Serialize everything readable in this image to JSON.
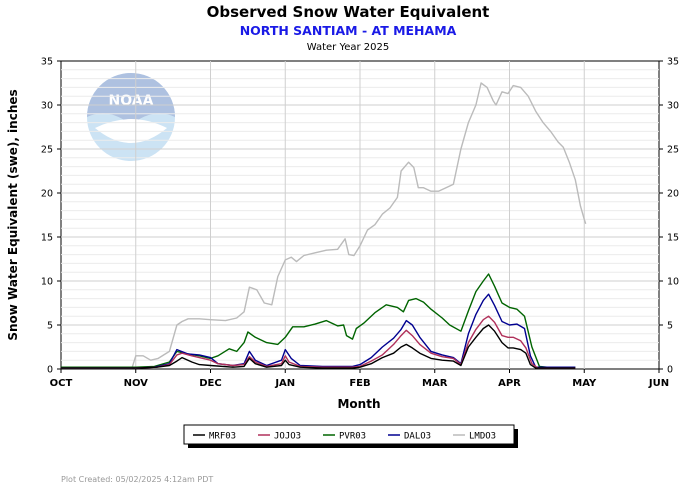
{
  "chart_data": {
    "type": "line",
    "title": "Observed Snow Water Equivalent",
    "subtitle": "NORTH SANTIAM - AT MEHAMA",
    "subtitle2": "Water Year 2025",
    "xlabel": "Month",
    "ylabel": "Snow Water Equivalent (swe),  inches",
    "xlim": [
      0,
      8
    ],
    "ylim": [
      0,
      35
    ],
    "x_ticks": [
      "OCT",
      "NOV",
      "DEC",
      "JAN",
      "FEB",
      "MAR",
      "APR",
      "MAY",
      "JUN"
    ],
    "y_ticks": [
      0,
      5,
      10,
      15,
      20,
      25,
      30,
      35
    ],
    "x_units": "months since Oct 1",
    "grid": true,
    "legend_position": "bottom",
    "footer": "Plot Created:  05/02/2025 4:12am PDT",
    "series": [
      {
        "name": "MRF03",
        "color": "#000000",
        "points": [
          [
            0,
            0.1
          ],
          [
            1,
            0.1
          ],
          [
            1.28,
            0.2
          ],
          [
            1.45,
            0.4
          ],
          [
            1.55,
            0.9
          ],
          [
            1.62,
            1.3
          ],
          [
            1.75,
            0.8
          ],
          [
            1.85,
            0.5
          ],
          [
            2.0,
            0.4
          ],
          [
            2.3,
            0.2
          ],
          [
            2.45,
            0.3
          ],
          [
            2.52,
            1.2
          ],
          [
            2.6,
            0.6
          ],
          [
            2.75,
            0.2
          ],
          [
            2.95,
            0.4
          ],
          [
            3.0,
            1.0
          ],
          [
            3.05,
            0.5
          ],
          [
            3.2,
            0.2
          ],
          [
            3.5,
            0.1
          ],
          [
            3.9,
            0.1
          ],
          [
            4.0,
            0.2
          ],
          [
            4.15,
            0.6
          ],
          [
            4.3,
            1.3
          ],
          [
            4.45,
            1.8
          ],
          [
            4.55,
            2.5
          ],
          [
            4.62,
            2.8
          ],
          [
            4.7,
            2.4
          ],
          [
            4.8,
            1.8
          ],
          [
            4.95,
            1.2
          ],
          [
            5.1,
            1.0
          ],
          [
            5.25,
            0.9
          ],
          [
            5.35,
            0.4
          ],
          [
            5.45,
            2.5
          ],
          [
            5.55,
            3.6
          ],
          [
            5.65,
            4.6
          ],
          [
            5.72,
            5.0
          ],
          [
            5.8,
            4.3
          ],
          [
            5.9,
            3.0
          ],
          [
            5.98,
            2.4
          ],
          [
            6.05,
            2.4
          ],
          [
            6.15,
            2.2
          ],
          [
            6.22,
            1.8
          ],
          [
            6.28,
            0.5
          ],
          [
            6.35,
            0.1
          ],
          [
            6.5,
            0.1
          ],
          [
            6.88,
            0.1
          ]
        ]
      },
      {
        "name": "JOJO3",
        "color": "#b0305a",
        "points": [
          [
            0,
            0.1
          ],
          [
            1,
            0.1
          ],
          [
            1.28,
            0.2
          ],
          [
            1.45,
            0.5
          ],
          [
            1.55,
            1.6
          ],
          [
            1.62,
            1.8
          ],
          [
            1.75,
            1.5
          ],
          [
            1.85,
            1.3
          ],
          [
            2.0,
            1.0
          ],
          [
            2.1,
            0.6
          ],
          [
            2.3,
            0.4
          ],
          [
            2.45,
            0.5
          ],
          [
            2.52,
            1.4
          ],
          [
            2.6,
            0.8
          ],
          [
            2.75,
            0.3
          ],
          [
            2.95,
            0.6
          ],
          [
            3.0,
            1.5
          ],
          [
            3.05,
            0.8
          ],
          [
            3.2,
            0.3
          ],
          [
            3.5,
            0.2
          ],
          [
            3.9,
            0.2
          ],
          [
            4.0,
            0.3
          ],
          [
            4.15,
            0.9
          ],
          [
            4.3,
            1.6
          ],
          [
            4.45,
            2.8
          ],
          [
            4.55,
            3.8
          ],
          [
            4.62,
            4.4
          ],
          [
            4.7,
            3.8
          ],
          [
            4.8,
            2.8
          ],
          [
            4.95,
            1.8
          ],
          [
            5.1,
            1.4
          ],
          [
            5.25,
            1.2
          ],
          [
            5.35,
            0.5
          ],
          [
            5.45,
            3.0
          ],
          [
            5.55,
            4.5
          ],
          [
            5.65,
            5.6
          ],
          [
            5.72,
            6.0
          ],
          [
            5.8,
            5.3
          ],
          [
            5.9,
            3.8
          ],
          [
            5.98,
            3.6
          ],
          [
            6.05,
            3.6
          ],
          [
            6.15,
            3.2
          ],
          [
            6.22,
            2.4
          ],
          [
            6.3,
            0.6
          ],
          [
            6.38,
            0.1
          ],
          [
            6.5,
            0.1
          ],
          [
            6.88,
            0.1
          ]
        ]
      },
      {
        "name": "PVR03",
        "color": "#006400",
        "points": [
          [
            0,
            0.2
          ],
          [
            1,
            0.2
          ],
          [
            1.25,
            0.3
          ],
          [
            1.45,
            0.8
          ],
          [
            1.55,
            2.0
          ],
          [
            1.7,
            1.7
          ],
          [
            1.85,
            1.5
          ],
          [
            2.0,
            1.2
          ],
          [
            2.1,
            1.5
          ],
          [
            2.25,
            2.3
          ],
          [
            2.35,
            2.0
          ],
          [
            2.45,
            3.0
          ],
          [
            2.5,
            4.2
          ],
          [
            2.6,
            3.6
          ],
          [
            2.75,
            3.0
          ],
          [
            2.9,
            2.8
          ],
          [
            3.0,
            3.6
          ],
          [
            3.1,
            4.8
          ],
          [
            3.25,
            4.8
          ],
          [
            3.4,
            5.1
          ],
          [
            3.55,
            5.5
          ],
          [
            3.7,
            4.9
          ],
          [
            3.78,
            5.0
          ],
          [
            3.82,
            3.8
          ],
          [
            3.9,
            3.4
          ],
          [
            3.95,
            4.6
          ],
          [
            4.05,
            5.2
          ],
          [
            4.2,
            6.4
          ],
          [
            4.35,
            7.3
          ],
          [
            4.5,
            7.0
          ],
          [
            4.58,
            6.5
          ],
          [
            4.65,
            7.8
          ],
          [
            4.75,
            8.0
          ],
          [
            4.85,
            7.6
          ],
          [
            4.95,
            6.8
          ],
          [
            5.1,
            5.8
          ],
          [
            5.2,
            5.0
          ],
          [
            5.35,
            4.3
          ],
          [
            5.45,
            6.6
          ],
          [
            5.55,
            8.8
          ],
          [
            5.65,
            10.0
          ],
          [
            5.72,
            10.8
          ],
          [
            5.8,
            9.4
          ],
          [
            5.9,
            7.5
          ],
          [
            6.0,
            7.0
          ],
          [
            6.1,
            6.8
          ],
          [
            6.2,
            6.0
          ],
          [
            6.3,
            2.5
          ],
          [
            6.4,
            0.3
          ],
          [
            6.5,
            0.2
          ],
          [
            6.88,
            0.2
          ]
        ]
      },
      {
        "name": "DALO3",
        "color": "#000090",
        "points": [
          [
            0,
            0.1
          ],
          [
            1,
            0.1
          ],
          [
            1.25,
            0.2
          ],
          [
            1.45,
            0.6
          ],
          [
            1.55,
            2.2
          ],
          [
            1.7,
            1.7
          ],
          [
            1.85,
            1.6
          ],
          [
            2.0,
            1.3
          ],
          [
            2.1,
            0.6
          ],
          [
            2.3,
            0.4
          ],
          [
            2.45,
            0.6
          ],
          [
            2.52,
            2.0
          ],
          [
            2.6,
            1.0
          ],
          [
            2.75,
            0.4
          ],
          [
            2.95,
            1.0
          ],
          [
            3.0,
            2.2
          ],
          [
            3.08,
            1.2
          ],
          [
            3.2,
            0.4
          ],
          [
            3.5,
            0.3
          ],
          [
            3.9,
            0.3
          ],
          [
            4.0,
            0.5
          ],
          [
            4.15,
            1.3
          ],
          [
            4.3,
            2.5
          ],
          [
            4.45,
            3.5
          ],
          [
            4.55,
            4.5
          ],
          [
            4.62,
            5.5
          ],
          [
            4.7,
            5.0
          ],
          [
            4.8,
            3.6
          ],
          [
            4.95,
            2.0
          ],
          [
            5.1,
            1.6
          ],
          [
            5.25,
            1.3
          ],
          [
            5.35,
            0.6
          ],
          [
            5.45,
            4.0
          ],
          [
            5.55,
            6.2
          ],
          [
            5.65,
            7.8
          ],
          [
            5.72,
            8.5
          ],
          [
            5.8,
            7.2
          ],
          [
            5.9,
            5.4
          ],
          [
            6.0,
            5.0
          ],
          [
            6.1,
            5.1
          ],
          [
            6.2,
            4.6
          ],
          [
            6.28,
            1.5
          ],
          [
            6.35,
            0.2
          ],
          [
            6.5,
            0.2
          ],
          [
            6.88,
            0.2
          ]
        ]
      },
      {
        "name": "LMDO3",
        "color": "#bbbbbb",
        "points": [
          [
            0,
            0.1
          ],
          [
            0.95,
            0.1
          ],
          [
            1.0,
            1.5
          ],
          [
            1.1,
            1.5
          ],
          [
            1.2,
            1.0
          ],
          [
            1.3,
            1.2
          ],
          [
            1.45,
            2.0
          ],
          [
            1.55,
            5.0
          ],
          [
            1.62,
            5.4
          ],
          [
            1.7,
            5.7
          ],
          [
            1.85,
            5.7
          ],
          [
            2.0,
            5.6
          ],
          [
            2.2,
            5.5
          ],
          [
            2.35,
            5.8
          ],
          [
            2.45,
            6.5
          ],
          [
            2.52,
            9.3
          ],
          [
            2.62,
            9.0
          ],
          [
            2.72,
            7.5
          ],
          [
            2.82,
            7.3
          ],
          [
            2.9,
            10.5
          ],
          [
            3.0,
            12.4
          ],
          [
            3.08,
            12.7
          ],
          [
            3.15,
            12.2
          ],
          [
            3.25,
            12.9
          ],
          [
            3.4,
            13.2
          ],
          [
            3.55,
            13.5
          ],
          [
            3.7,
            13.6
          ],
          [
            3.8,
            14.8
          ],
          [
            3.85,
            13.0
          ],
          [
            3.92,
            12.9
          ],
          [
            4.0,
            14.0
          ],
          [
            4.1,
            15.8
          ],
          [
            4.2,
            16.4
          ],
          [
            4.3,
            17.6
          ],
          [
            4.4,
            18.3
          ],
          [
            4.5,
            19.5
          ],
          [
            4.55,
            22.5
          ],
          [
            4.65,
            23.5
          ],
          [
            4.72,
            22.9
          ],
          [
            4.78,
            20.6
          ],
          [
            4.85,
            20.6
          ],
          [
            4.95,
            20.2
          ],
          [
            5.05,
            20.2
          ],
          [
            5.15,
            20.6
          ],
          [
            5.25,
            21.0
          ],
          [
            5.35,
            25.0
          ],
          [
            5.45,
            28.0
          ],
          [
            5.55,
            30.0
          ],
          [
            5.62,
            32.5
          ],
          [
            5.7,
            32.0
          ],
          [
            5.78,
            30.5
          ],
          [
            5.82,
            30.0
          ],
          [
            5.9,
            31.5
          ],
          [
            5.98,
            31.3
          ],
          [
            6.05,
            32.2
          ],
          [
            6.15,
            32.0
          ],
          [
            6.25,
            31.0
          ],
          [
            6.35,
            29.3
          ],
          [
            6.45,
            28.0
          ],
          [
            6.55,
            27.0
          ],
          [
            6.65,
            25.8
          ],
          [
            6.72,
            25.2
          ],
          [
            6.8,
            23.5
          ],
          [
            6.88,
            21.5
          ],
          [
            6.95,
            18.5
          ],
          [
            7.0,
            17.0
          ],
          [
            7.02,
            16.5
          ]
        ]
      }
    ]
  }
}
